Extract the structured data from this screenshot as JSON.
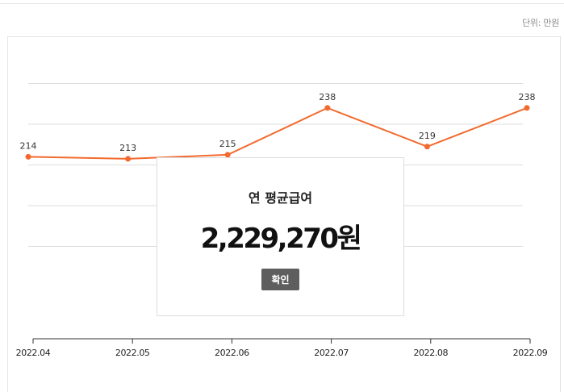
{
  "unit_label": "단위: 만원",
  "popup": {
    "title": "연 평균급여",
    "amount": "2,229,270원",
    "confirm_label": "확인"
  },
  "colors": {
    "line": "#f26a2e",
    "grid": "#dddddd",
    "axis": "#333333"
  },
  "chart_data": {
    "type": "line",
    "categories": [
      "2022.04",
      "2022.05",
      "2022.06",
      "2022.07",
      "2022.08",
      "2022.09"
    ],
    "series": [
      {
        "values": [
          214,
          213,
          215,
          238,
          219,
          238
        ]
      }
    ],
    "data_labels": [
      "214",
      "213",
      "215",
      "238",
      "219",
      "238"
    ],
    "ylim": [
      150,
      250
    ],
    "grid": true,
    "legend": "none"
  }
}
